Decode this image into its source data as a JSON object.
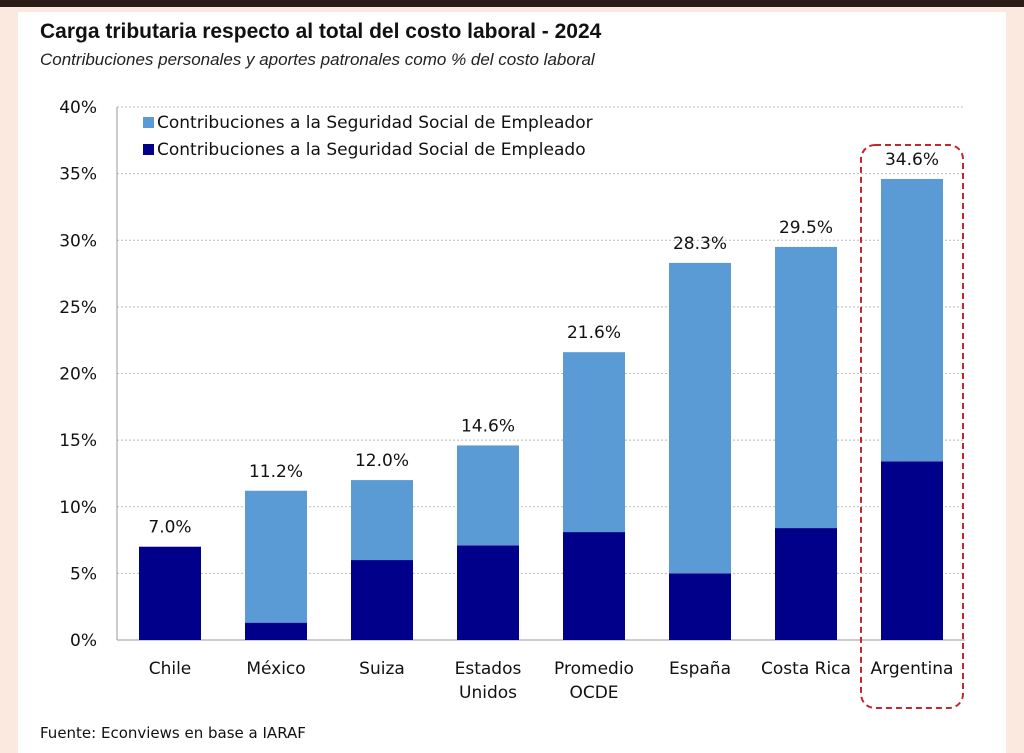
{
  "title": "Carga tributaria respecto al total del costo laboral - 2024",
  "subtitle": "Contribuciones personales y aportes patronales como % del costo laboral",
  "source": "Fuente: Econviews en base a IARAF",
  "chart_data": {
    "type": "bar",
    "stacked": true,
    "categories": [
      [
        "Chile"
      ],
      [
        "México"
      ],
      [
        "Suiza"
      ],
      [
        "Estados",
        "Unidos"
      ],
      [
        "Promedio",
        "OCDE"
      ],
      [
        "España"
      ],
      [
        "Costa Rica"
      ],
      [
        "Argentina"
      ]
    ],
    "series": [
      {
        "name": "Contribuciones a la Seguridad Social de Empleado",
        "color": "#00008b",
        "values": [
          7.0,
          1.3,
          6.0,
          7.1,
          8.1,
          5.0,
          8.4,
          13.4
        ]
      },
      {
        "name": "Contribuciones a la Seguridad Social de Empleador",
        "color": "#5b9bd5",
        "values": [
          0.0,
          9.9,
          6.0,
          7.5,
          13.5,
          23.3,
          21.1,
          21.2
        ]
      }
    ],
    "totals": [
      7.0,
      11.2,
      12.0,
      14.6,
      21.6,
      28.3,
      29.5,
      34.6
    ],
    "total_labels": [
      "7.0%",
      "11.2%",
      "12.0%",
      "14.6%",
      "21.6%",
      "28.3%",
      "29.5%",
      "34.6%"
    ],
    "yticks": [
      "0%",
      "5%",
      "10%",
      "15%",
      "20%",
      "25%",
      "30%",
      "35%",
      "40%"
    ],
    "ylim": [
      0,
      40
    ],
    "grid": true,
    "legend_placement": "top-left",
    "highlight_category": "Argentina",
    "highlight_color": "#c0282d"
  }
}
